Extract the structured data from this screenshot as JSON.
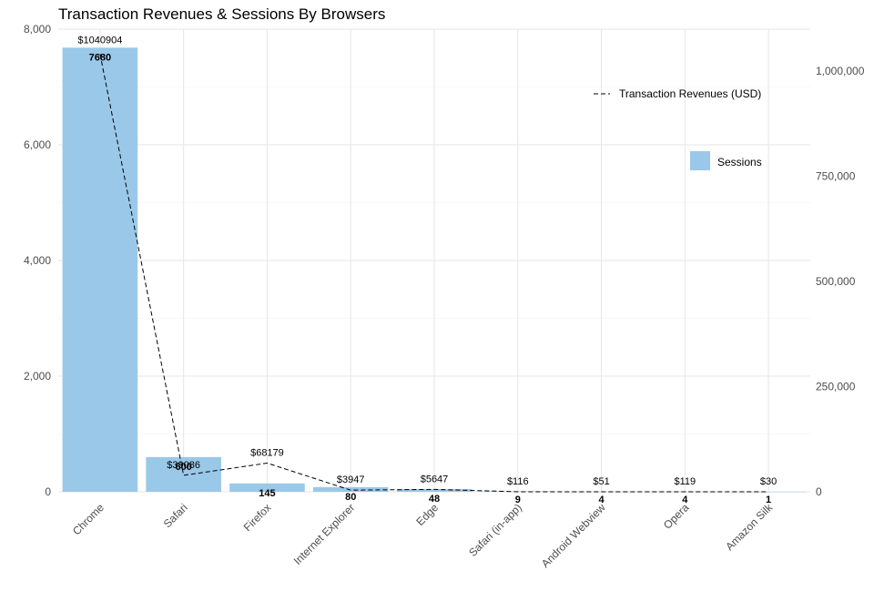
{
  "chart_data": {
    "type": "bar",
    "title": "Transaction Revenues & Sessions By Browsers",
    "xlabel": "",
    "ylabel": "",
    "categories": [
      "Chrome",
      "Safari",
      "Firefox",
      "Internet Explorer",
      "Edge",
      "Safari (in-app)",
      "Android Webview",
      "Opera",
      "Amazon Silk"
    ],
    "series": [
      {
        "name": "Sessions",
        "type": "bar",
        "axis": "left",
        "color": "#9ac8e8",
        "values": [
          7680,
          600,
          145,
          80,
          48,
          9,
          4,
          4,
          1
        ],
        "labels": [
          "7680",
          "600",
          "145",
          "80",
          "48",
          "9",
          "4",
          "4",
          "1"
        ]
      },
      {
        "name": "Transaction Revenues (USD)",
        "type": "line",
        "style": "dashed",
        "axis": "right",
        "color": "#000000",
        "values": [
          1040904,
          39086,
          68179,
          3947,
          5647,
          116,
          51,
          119,
          30
        ],
        "labels": [
          "$1040904",
          "$39086",
          "$68179",
          "$3947",
          "$5647",
          "$116",
          "$51",
          "$119",
          "$30"
        ]
      }
    ],
    "y_left": {
      "lim": [
        0,
        8000
      ],
      "ticks": [
        0,
        2000,
        4000,
        6000,
        8000
      ],
      "tick_labels": [
        "0",
        "2,000",
        "4,000",
        "6,000",
        "8,000"
      ]
    },
    "y_right": {
      "lim": [
        0,
        1100000
      ],
      "ticks": [
        0,
        250000,
        500000,
        750000,
        1000000
      ],
      "tick_labels": [
        "0",
        "250,000",
        "500,000",
        "750,000",
        "1,000,000"
      ]
    },
    "grid": true,
    "legend": [
      {
        "name": "Transaction Revenues (USD)",
        "marker": "dashed-line",
        "placement": "top-right"
      },
      {
        "name": "Sessions",
        "marker": "filled-box",
        "placement": "right"
      }
    ]
  }
}
